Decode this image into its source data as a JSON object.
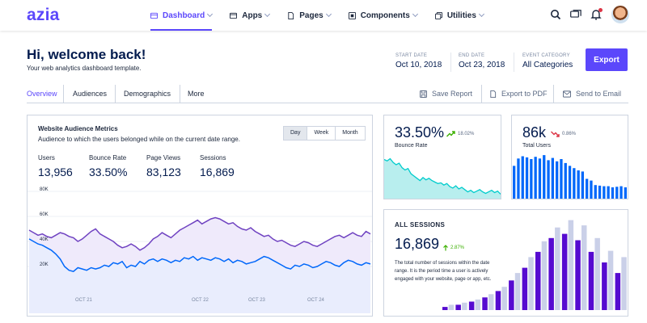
{
  "app": {
    "logo": "azia"
  },
  "nav": {
    "items": [
      {
        "label": "Dashboard",
        "icon": "dashboard-icon",
        "active": true
      },
      {
        "label": "Apps",
        "icon": "apps-icon",
        "active": false
      },
      {
        "label": "Pages",
        "icon": "pages-icon",
        "active": false
      },
      {
        "label": "Components",
        "icon": "components-icon",
        "active": false
      },
      {
        "label": "Utilities",
        "icon": "utilities-icon",
        "active": false
      }
    ]
  },
  "header_icons": [
    "search-icon",
    "chat-icon",
    "bell-icon",
    "avatar"
  ],
  "page": {
    "title": "Hi, welcome back!",
    "subtitle": "Your web analytics dashboard template.",
    "start_label": "START DATE",
    "start_value": "Oct 10, 2018",
    "end_label": "END DATE",
    "end_value": "Oct 23, 2018",
    "category_label": "EVENT CATEGORY",
    "category_value": "All Categories",
    "export_label": "Export"
  },
  "tabs": {
    "items": [
      "Overview",
      "Audiences",
      "Demographics",
      "More"
    ],
    "active": 0,
    "actions": [
      {
        "label": "Save Report",
        "icon": "save-icon"
      },
      {
        "label": "Export to PDF",
        "icon": "file-icon"
      },
      {
        "label": "Send to Email",
        "icon": "mail-icon"
      }
    ]
  },
  "audience": {
    "title": "Website Audience Metrics",
    "subtitle": "Audience to which the users belonged while on the current date range.",
    "ranges": [
      "Day",
      "Week",
      "Month"
    ],
    "active_range": 0,
    "metrics": [
      {
        "label": "Users",
        "value": "13,956"
      },
      {
        "label": "Bounce Rate",
        "value": "33.50%"
      },
      {
        "label": "Page Views",
        "value": "83,123"
      },
      {
        "label": "Sessions",
        "value": "16,869"
      }
    ]
  },
  "bounce": {
    "value": "33.50%",
    "change": "18.02%",
    "label": "Bounce Rate",
    "trend": "up"
  },
  "users": {
    "value": "86k",
    "change": "0.86%",
    "label": "Total Users",
    "trend": "down"
  },
  "sessions": {
    "title": "ALL SESSIONS",
    "value": "16,869",
    "change": "2.87%",
    "trend": "up",
    "description": "The total number of sessions within the date range. It is the period time a user is actively engaged with your website, page or app, etc."
  },
  "colors": {
    "accent": "#5b47fb",
    "cyan": "#00cccc",
    "purple_series": "#6f42c1",
    "blue_series": "#0168fa",
    "bar_blue": "#0168fa",
    "bar_purple": "#560bd0",
    "bar_light": "#cad0e8",
    "up": "#3bb001",
    "down": "#dc3545"
  },
  "chart_data": [
    {
      "type": "area",
      "chart": "website-audience-metrics",
      "ylim": [
        0,
        80000
      ],
      "yticks": [
        "80K",
        "60K",
        "40K",
        "20K"
      ],
      "xticks": [
        "OCT 21",
        "OCT 22",
        "OCT 23",
        "OCT 24"
      ],
      "series": [
        {
          "name": "",
          "color": "#6f42c1",
          "values": [
            49000,
            47000,
            45000,
            46000,
            44000,
            43000,
            45000,
            47000,
            46000,
            44000,
            43000,
            40000,
            42000,
            45000,
            48000,
            50000,
            46000,
            44000,
            42000,
            40000,
            37000,
            35000,
            36000,
            38000,
            36000,
            33000,
            35000,
            38000,
            42000,
            44000,
            47000,
            45000,
            43000,
            46000,
            49000,
            51000,
            53000,
            55000,
            57000,
            54000,
            56000,
            58000,
            59000,
            58000,
            56000,
            54000,
            55000,
            52000,
            50000,
            49000,
            51000,
            48000,
            46000,
            44000,
            45000,
            42000,
            40000,
            41000,
            39000,
            37000,
            36000,
            38000,
            40000,
            39000,
            37000,
            36000,
            38000,
            40000,
            42000,
            44000,
            45000,
            43000,
            45000,
            47000,
            45000,
            44000,
            48000,
            46000
          ]
        },
        {
          "name": "",
          "color": "#0168fa",
          "values": [
            42000,
            40000,
            38000,
            37000,
            35000,
            33000,
            30000,
            26000,
            20000,
            17000,
            16000,
            19000,
            18000,
            17000,
            19000,
            18000,
            19000,
            21000,
            20000,
            23000,
            22000,
            24000,
            19000,
            21000,
            20000,
            24000,
            22000,
            25000,
            26000,
            24000,
            26000,
            25000,
            23000,
            25000,
            24000,
            27000,
            26000,
            28000,
            25000,
            27000,
            26000,
            25000,
            27000,
            26000,
            24000,
            26000,
            23000,
            25000,
            24000,
            22000,
            23000,
            24000,
            26000,
            28000,
            27000,
            25000,
            23000,
            21000,
            19000,
            18000,
            21000,
            20000,
            22000,
            21000,
            19000,
            20000,
            22000,
            24000,
            23000,
            21000,
            20000,
            23000,
            25000,
            24000,
            22000,
            21000,
            23000,
            22000
          ]
        }
      ]
    },
    {
      "type": "area",
      "chart": "bounce-rate-sparkline",
      "series": [
        {
          "name": "",
          "values": [
            52,
            50,
            53,
            48,
            45,
            47,
            41,
            38,
            40,
            33,
            30,
            27,
            24,
            28,
            25,
            27,
            24,
            22,
            20,
            21,
            18,
            20,
            16,
            14,
            17,
            13,
            15,
            12,
            9,
            11,
            8,
            10,
            12,
            9,
            7,
            9,
            11,
            8,
            10,
            6
          ]
        }
      ]
    },
    {
      "type": "bar",
      "chart": "total-users-bars",
      "values": [
        58,
        71,
        75,
        73,
        70,
        74,
        71,
        77,
        68,
        72,
        66,
        70,
        63,
        58,
        54,
        50,
        48,
        35,
        32,
        24,
        23,
        22,
        22,
        20,
        21,
        22,
        20
      ]
    },
    {
      "type": "bar",
      "chart": "all-sessions-bars",
      "series": [
        {
          "name": "",
          "values": [
            3,
            5,
            8,
            12,
            18,
            28,
            40,
            55,
            68,
            72,
            66,
            55,
            45,
            35
          ]
        },
        {
          "name": "",
          "values": [
            5,
            7,
            10,
            15,
            22,
            35,
            50,
            65,
            78,
            85,
            80,
            68,
            56,
            50
          ]
        }
      ]
    }
  ]
}
